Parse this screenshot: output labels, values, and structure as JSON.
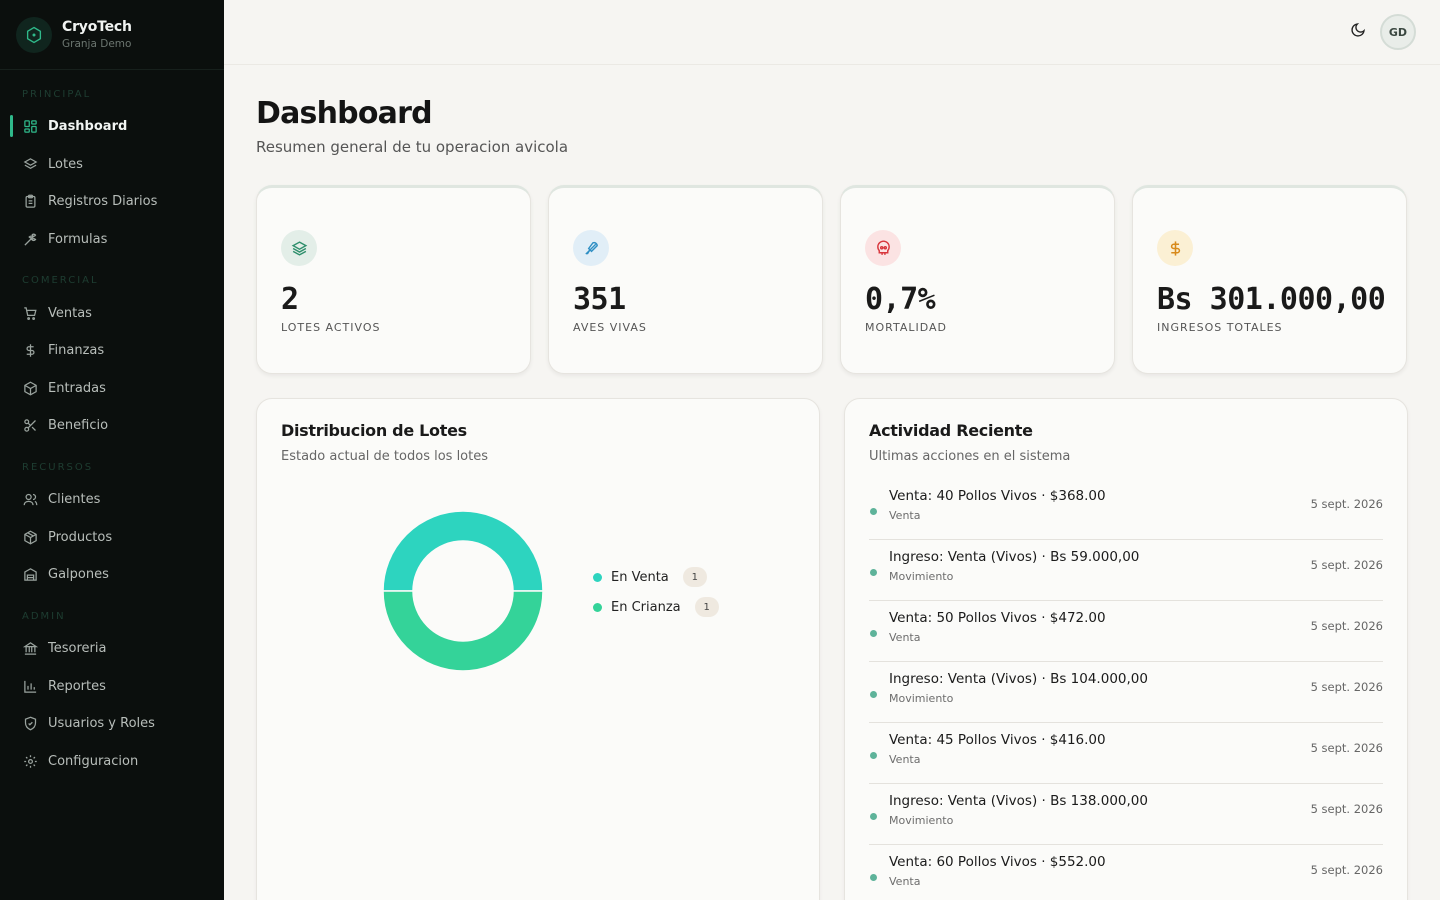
{
  "brand": {
    "name": "CryoTech",
    "subtitle": "Granja Demo"
  },
  "nav": {
    "sections": [
      {
        "label": "PRINCIPAL",
        "items": [
          "Dashboard",
          "Lotes",
          "Registros Diarios",
          "Formulas"
        ]
      },
      {
        "label": "COMERCIAL",
        "items": [
          "Ventas",
          "Finanzas",
          "Entradas",
          "Beneficio"
        ]
      },
      {
        "label": "RECURSOS",
        "items": [
          "Clientes",
          "Productos",
          "Galpones"
        ]
      },
      {
        "label": "ADMIN",
        "items": [
          "Tesoreria",
          "Reportes",
          "Usuarios y Roles",
          "Configuracion"
        ]
      }
    ],
    "active": "Dashboard"
  },
  "topbar": {
    "avatar_initials": "GD",
    "theme_icon": "moon-icon"
  },
  "header": {
    "title": "Dashboard",
    "subtitle": "Resumen general de tu operacion avicola"
  },
  "stats": [
    {
      "value": "2",
      "label": "LOTES ACTIVOS",
      "icon": "layers-icon",
      "icon_color": "#2f8f6c",
      "icon_bg": "#e3eee8"
    },
    {
      "value": "351",
      "label": "AVES VIVAS",
      "icon": "bird-icon",
      "icon_color": "#2f8fc4",
      "icon_bg": "#e1eef7"
    },
    {
      "value": "0,7%",
      "label": "MORTALIDAD",
      "icon": "skull-icon",
      "icon_color": "#d8363c",
      "icon_bg": "#fbe3e3"
    },
    {
      "value": "Bs 301.000,00",
      "label": "INGRESOS TOTALES",
      "icon": "dollar-icon",
      "icon_color": "#d88a1b",
      "icon_bg": "#fbf0d4"
    }
  ],
  "distribution": {
    "title": "Distribucion de Lotes",
    "subtitle": "Estado actual de todos los lotes",
    "chart_data": {
      "type": "pie",
      "categories": [
        "En Venta",
        "En Crianza"
      ],
      "values": [
        1,
        1
      ],
      "colors": [
        "#2dd4bf",
        "#34d399"
      ],
      "legend": "right"
    }
  },
  "activity": {
    "title": "Actividad Reciente",
    "subtitle": "Ultimas acciones en el sistema",
    "items": [
      {
        "title": "Venta: 40 Pollos Vivos · $368.00",
        "type": "Venta",
        "date": "5 sept. 2026"
      },
      {
        "title": "Ingreso: Venta (Vivos) · Bs 59.000,00",
        "type": "Movimiento",
        "date": "5 sept. 2026"
      },
      {
        "title": "Venta: 50 Pollos Vivos · $472.00",
        "type": "Venta",
        "date": "5 sept. 2026"
      },
      {
        "title": "Ingreso: Venta (Vivos) · Bs 104.000,00",
        "type": "Movimiento",
        "date": "5 sept. 2026"
      },
      {
        "title": "Venta: 45 Pollos Vivos · $416.00",
        "type": "Venta",
        "date": "5 sept. 2026"
      },
      {
        "title": "Ingreso: Venta (Vivos) · Bs 138.000,00",
        "type": "Movimiento",
        "date": "5 sept. 2026"
      },
      {
        "title": "Venta: 60 Pollos Vivos · $552.00",
        "type": "Venta",
        "date": "5 sept. 2026"
      }
    ]
  }
}
